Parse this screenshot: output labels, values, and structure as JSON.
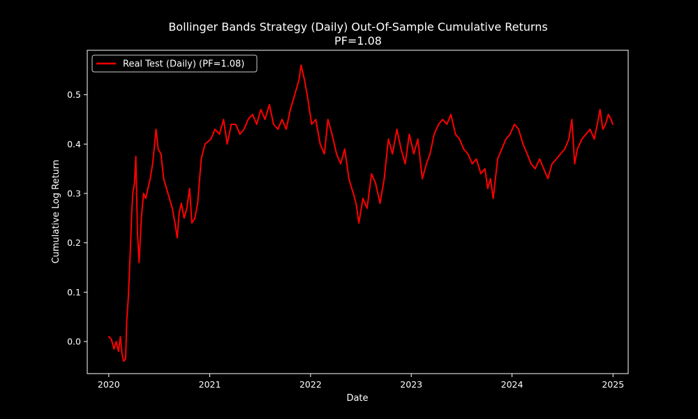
{
  "chart_data": {
    "type": "line",
    "title": "Bollinger Bands Strategy (Daily) Out-Of-Sample Cumulative Returns",
    "subtitle": "PF=1.08",
    "xlabel": "Date",
    "ylabel": "Cumulative Log Return",
    "xlim": [
      "2019-10-15",
      "2025-02-25"
    ],
    "ylim": [
      -0.065,
      0.59
    ],
    "x_ticks": [
      "2020",
      "2021",
      "2022",
      "2023",
      "2024",
      "2025"
    ],
    "x_tick_dates": [
      "2020-01-01",
      "2021-01-01",
      "2022-01-01",
      "2023-01-01",
      "2024-01-01",
      "2025-01-01"
    ],
    "y_ticks": [
      "0.0",
      "0.1",
      "0.2",
      "0.3",
      "0.4",
      "0.5"
    ],
    "y_tick_values": [
      0.0,
      0.1,
      0.2,
      0.3,
      0.4,
      0.5
    ],
    "grid": false,
    "legend_position": "top-left",
    "background": "#000000",
    "foreground": "#ffffff",
    "series": [
      {
        "name": "Real Test (Daily) (PF=1.08)",
        "color": "#ff0000",
        "x": [
          "2020-01-01",
          "2020-01-10",
          "2020-01-20",
          "2020-01-28",
          "2020-02-05",
          "2020-02-12",
          "2020-02-18",
          "2020-02-24",
          "2020-03-02",
          "2020-03-06",
          "2020-03-12",
          "2020-03-18",
          "2020-03-24",
          "2020-03-28",
          "2020-04-03",
          "2020-04-08",
          "2020-04-14",
          "2020-04-20",
          "2020-04-28",
          "2020-05-06",
          "2020-05-14",
          "2020-05-22",
          "2020-05-30",
          "2020-06-08",
          "2020-06-15",
          "2020-06-20",
          "2020-06-28",
          "2020-07-08",
          "2020-07-18",
          "2020-07-28",
          "2020-08-08",
          "2020-08-18",
          "2020-08-28",
          "2020-09-05",
          "2020-09-12",
          "2020-09-20",
          "2020-09-30",
          "2020-10-10",
          "2020-10-20",
          "2020-10-28",
          "2020-11-08",
          "2020-11-18",
          "2020-12-01",
          "2020-12-15",
          "2021-01-05",
          "2021-01-20",
          "2021-02-05",
          "2021-02-20",
          "2021-03-05",
          "2021-03-20",
          "2021-04-05",
          "2021-04-20",
          "2021-05-05",
          "2021-05-20",
          "2021-06-05",
          "2021-06-20",
          "2021-07-05",
          "2021-07-20",
          "2021-08-05",
          "2021-08-20",
          "2021-09-05",
          "2021-09-20",
          "2021-10-05",
          "2021-10-20",
          "2021-11-05",
          "2021-11-20",
          "2021-11-28",
          "2021-12-10",
          "2021-12-20",
          "2022-01-05",
          "2022-01-20",
          "2022-02-05",
          "2022-02-20",
          "2022-03-05",
          "2022-03-20",
          "2022-04-05",
          "2022-04-20",
          "2022-05-05",
          "2022-05-20",
          "2022-06-05",
          "2022-06-15",
          "2022-06-25",
          "2022-07-10",
          "2022-07-25",
          "2022-08-10",
          "2022-08-25",
          "2022-09-10",
          "2022-09-25",
          "2022-10-10",
          "2022-10-25",
          "2022-11-10",
          "2022-11-25",
          "2022-12-10",
          "2022-12-25",
          "2023-01-10",
          "2023-01-25",
          "2023-02-10",
          "2023-02-25",
          "2023-03-10",
          "2023-03-25",
          "2023-04-10",
          "2023-04-25",
          "2023-05-10",
          "2023-05-25",
          "2023-06-10",
          "2023-06-25",
          "2023-07-10",
          "2023-07-25",
          "2023-08-10",
          "2023-08-25",
          "2023-09-10",
          "2023-09-25",
          "2023-10-05",
          "2023-10-15",
          "2023-10-25",
          "2023-11-10",
          "2023-11-25",
          "2023-12-10",
          "2023-12-25",
          "2024-01-10",
          "2024-01-25",
          "2024-02-10",
          "2024-02-25",
          "2024-03-10",
          "2024-03-25",
          "2024-04-10",
          "2024-04-25",
          "2024-05-10",
          "2024-05-25",
          "2024-06-10",
          "2024-06-25",
          "2024-07-10",
          "2024-07-25",
          "2024-08-05",
          "2024-08-15",
          "2024-08-25",
          "2024-09-10",
          "2024-09-25",
          "2024-10-10",
          "2024-10-25",
          "2024-11-05",
          "2024-11-15",
          "2024-11-25",
          "2024-12-05",
          "2024-12-15",
          "2024-12-25",
          "2024-12-31"
        ],
        "y": [
          0.01,
          0.005,
          -0.015,
          0.0,
          -0.02,
          0.01,
          -0.025,
          -0.04,
          -0.035,
          0.04,
          0.09,
          0.17,
          0.26,
          0.3,
          0.32,
          0.375,
          0.22,
          0.16,
          0.25,
          0.3,
          0.29,
          0.31,
          0.33,
          0.36,
          0.4,
          0.43,
          0.39,
          0.38,
          0.33,
          0.31,
          0.29,
          0.27,
          0.24,
          0.21,
          0.26,
          0.28,
          0.25,
          0.27,
          0.31,
          0.24,
          0.25,
          0.28,
          0.37,
          0.4,
          0.41,
          0.43,
          0.42,
          0.45,
          0.4,
          0.44,
          0.44,
          0.42,
          0.43,
          0.45,
          0.46,
          0.44,
          0.47,
          0.45,
          0.48,
          0.44,
          0.43,
          0.45,
          0.43,
          0.47,
          0.5,
          0.53,
          0.56,
          0.53,
          0.5,
          0.44,
          0.45,
          0.4,
          0.38,
          0.45,
          0.42,
          0.38,
          0.36,
          0.39,
          0.33,
          0.3,
          0.28,
          0.24,
          0.29,
          0.27,
          0.34,
          0.32,
          0.28,
          0.33,
          0.41,
          0.38,
          0.43,
          0.39,
          0.36,
          0.42,
          0.38,
          0.41,
          0.33,
          0.36,
          0.38,
          0.42,
          0.44,
          0.45,
          0.44,
          0.46,
          0.42,
          0.41,
          0.39,
          0.38,
          0.36,
          0.37,
          0.34,
          0.35,
          0.31,
          0.33,
          0.29,
          0.37,
          0.39,
          0.41,
          0.42,
          0.44,
          0.43,
          0.4,
          0.38,
          0.36,
          0.35,
          0.37,
          0.35,
          0.33,
          0.36,
          0.37,
          0.38,
          0.39,
          0.41,
          0.45,
          0.36,
          0.39,
          0.41,
          0.42,
          0.43,
          0.41,
          0.44,
          0.47,
          0.43,
          0.44,
          0.46,
          0.45,
          0.44
        ]
      }
    ]
  }
}
